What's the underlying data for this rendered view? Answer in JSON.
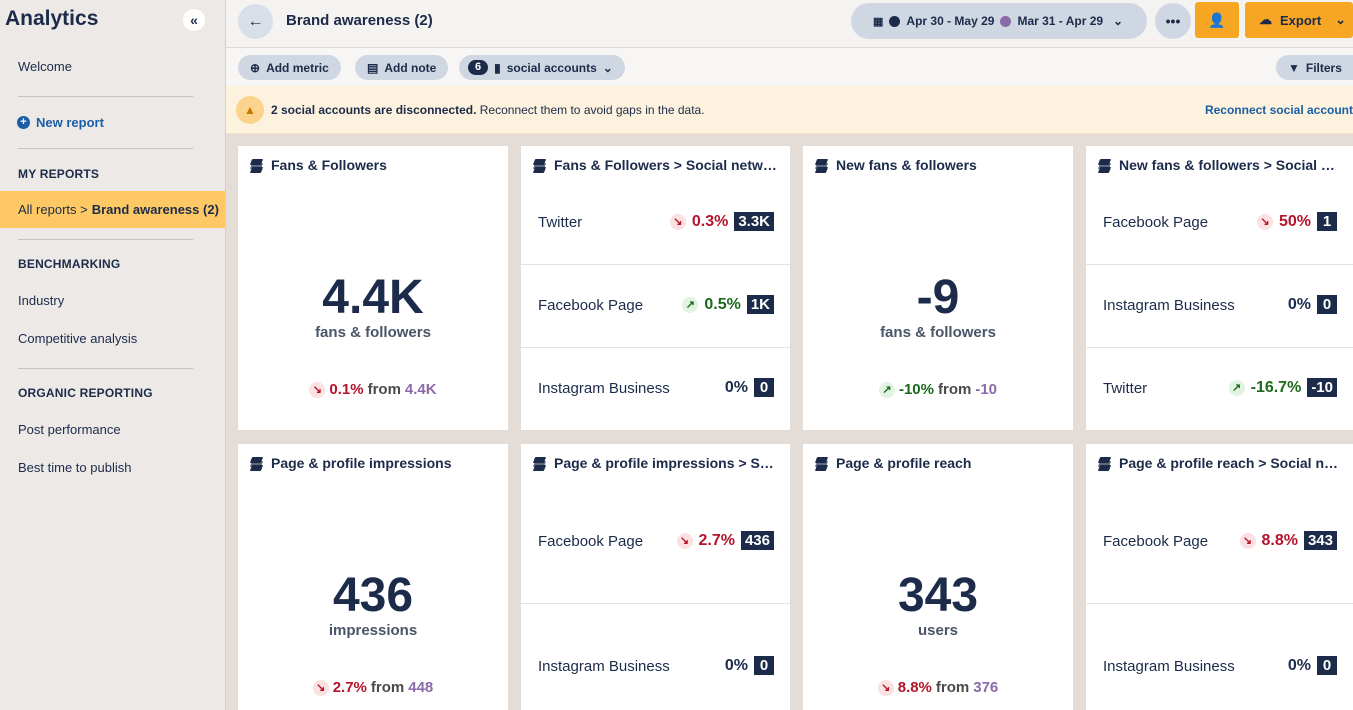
{
  "sidebar": {
    "title": "Analytics",
    "collapse_icon": "«",
    "welcome": "Welcome",
    "new_report": "New report",
    "my_reports_heading": "MY REPORTS",
    "active_prefix": "All reports >",
    "active_name": "Brand awareness (2)",
    "benchmarking_heading": "BENCHMARKING",
    "industry": "Industry",
    "competitive": "Competitive analysis",
    "organic_heading": "ORGANIC REPORTING",
    "post_performance": "Post performance",
    "best_time": "Best time to publish"
  },
  "header": {
    "title": "Brand awareness (2)",
    "range_current": "Apr 30 - May 29",
    "range_previous": "Mar 31 - Apr 29",
    "color_current": "#1c2b4a",
    "color_previous": "#8a6aa8",
    "export_label": "Export"
  },
  "toolbar": {
    "add_metric": "Add metric",
    "add_note": "Add note",
    "accounts_count": "6",
    "accounts_label": "social accounts",
    "filters": "Filters"
  },
  "banner": {
    "bold": "2 social accounts are disconnected.",
    "rest": " Reconnect them to avoid gaps in the data.",
    "link": "Reconnect social account"
  },
  "cards": {
    "c1": {
      "title": "Fans & Followers",
      "value": "4.4K",
      "unit": "fans & followers",
      "change": "0.1%",
      "from": "from",
      "prev": "4.4K"
    },
    "c2": {
      "title": "Fans & Followers > Social networks",
      "rows": [
        {
          "label": "Twitter",
          "change": "0.3%",
          "value": "3.3K"
        },
        {
          "label": "Facebook Page",
          "change": "0.5%",
          "value": "1K"
        },
        {
          "label": "Instagram Business",
          "change": "0%",
          "value": "0"
        }
      ]
    },
    "c3": {
      "title": "New fans & followers",
      "value": "-9",
      "unit": "fans & followers",
      "change": "-10%",
      "from": "from",
      "prev": "-10"
    },
    "c4": {
      "title": "New fans & followers > Social networks",
      "rows": [
        {
          "label": "Facebook Page",
          "change": "50%",
          "value": "1"
        },
        {
          "label": "Instagram Business",
          "change": "0%",
          "value": "0"
        },
        {
          "label": "Twitter",
          "change": "-16.7%",
          "value": "-10"
        }
      ]
    },
    "c5": {
      "title": "Page & profile impressions",
      "value": "436",
      "unit": "impressions",
      "change": "2.7%",
      "from": "from",
      "prev": "448"
    },
    "c6": {
      "title": "Page & profile impressions > Social networks",
      "rows": [
        {
          "label": "Facebook Page",
          "change": "2.7%",
          "value": "436"
        },
        {
          "label": "Instagram Business",
          "change": "0%",
          "value": "0"
        }
      ]
    },
    "c7": {
      "title": "Page & profile reach",
      "value": "343",
      "unit": "users",
      "change": "8.8%",
      "from": "from",
      "prev": "376"
    },
    "c8": {
      "title": "Page & profile reach > Social networks",
      "rows": [
        {
          "label": "Facebook Page",
          "change": "8.8%",
          "value": "343"
        },
        {
          "label": "Instagram Business",
          "change": "0%",
          "value": "0"
        }
      ]
    }
  }
}
